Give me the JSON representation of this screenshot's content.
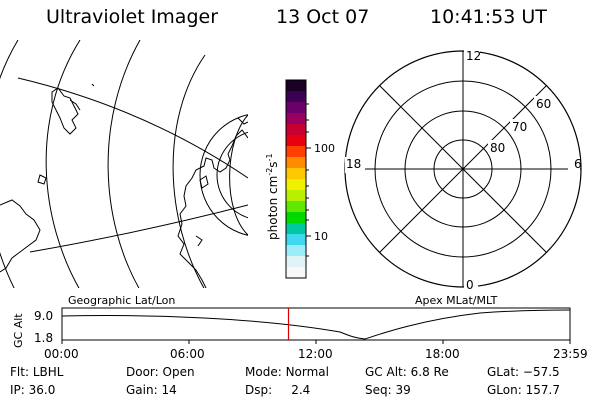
{
  "header": {
    "title": "Ultraviolet Imager",
    "date": "13 Oct 07",
    "time": "10:41:53 UT"
  },
  "colorbar": {
    "unit_label": "photon cm",
    "unit_sup1": "-2",
    "unit_mid": "s",
    "unit_sup2": "-1",
    "tick_100": "100",
    "tick_10": "10",
    "colors": [
      "#1a0024",
      "#3a0052",
      "#6a006a",
      "#9a0060",
      "#c80032",
      "#e80010",
      "#ff4000",
      "#ff8c00",
      "#ffc800",
      "#f0f000",
      "#b8f000",
      "#60e800",
      "#00d800",
      "#00c8a0",
      "#40d8f0",
      "#9cecf8",
      "#e0f4f8",
      "#f8f8f8"
    ]
  },
  "polar": {
    "mlt_top": "12",
    "mlt_bottom": "0",
    "mlt_left": "18",
    "mlt_right": "6",
    "lat_60": "60",
    "lat_70": "70",
    "lat_80": "80"
  },
  "projection_labels": {
    "left": "Geographic Lat/Lon",
    "right": "Apex MLat/MLT"
  },
  "alt_plot": {
    "ylabel": "GC Alt",
    "y_high": "9.0",
    "y_low": "1.8",
    "x_ticks": [
      "00:00",
      "06:00",
      "12:00",
      "18:00",
      "23:59"
    ],
    "marker_time": "10:41:53",
    "marker_fraction": 0.4458,
    "marker_color": "#e00000"
  },
  "info": {
    "flt_label": "Flt:",
    "flt_value": "LBHL",
    "door_label": "Door:",
    "door_value": "Open",
    "mode_label": "Mode:",
    "mode_value": "Normal",
    "gcalt_label": "GC Alt:",
    "gcalt_value": "6.8 Re",
    "glat_label": "GLat:",
    "glat_value": "−57.5",
    "ip_label": "IP:",
    "ip_value": "36.0",
    "gain_label": "Gain:",
    "gain_value": "14",
    "dsp_label": "Dsp:",
    "dsp_value": "2.4",
    "seq_label": "Seq:",
    "seq_value": "39",
    "glon_label": "GLon:",
    "glon_value": "157.7"
  }
}
